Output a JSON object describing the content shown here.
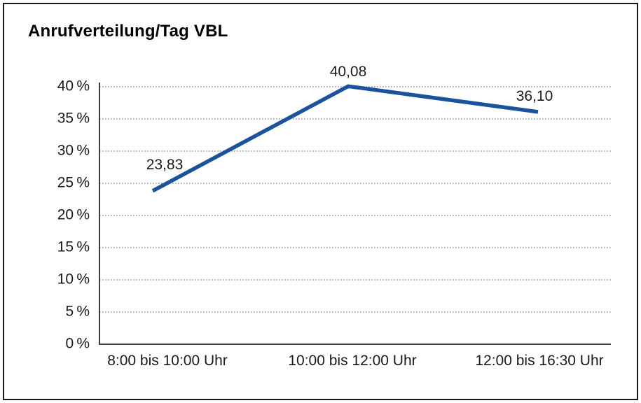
{
  "chart_data": {
    "type": "line",
    "title": "Anrufverteilung/Tag VBL",
    "categories": [
      "8:00 bis 10:00 Uhr",
      "10:00 bis 12:00 Uhr",
      "12:00 bis 16:30 Uhr"
    ],
    "values": [
      23.83,
      40.08,
      36.1
    ],
    "value_labels": [
      "23,83",
      "40,08",
      "36,10"
    ],
    "ytick_labels": [
      "0 %",
      "5 %",
      "10 %",
      "15 %",
      "20 %",
      "25 %",
      "30 %",
      "35 %",
      "40 %"
    ],
    "ylim": [
      0,
      40
    ],
    "ytick_step": 5,
    "xlabel": "",
    "ylabel": "",
    "grid": "horizontal-dotted",
    "legend": "none",
    "line_color": "#1a529b",
    "axis_color": "#3f3f3f",
    "grid_color": "#7d7d7d",
    "text_color": "#1a1a1a",
    "background": "#ffffff",
    "border_color": "#1a1a1a"
  }
}
